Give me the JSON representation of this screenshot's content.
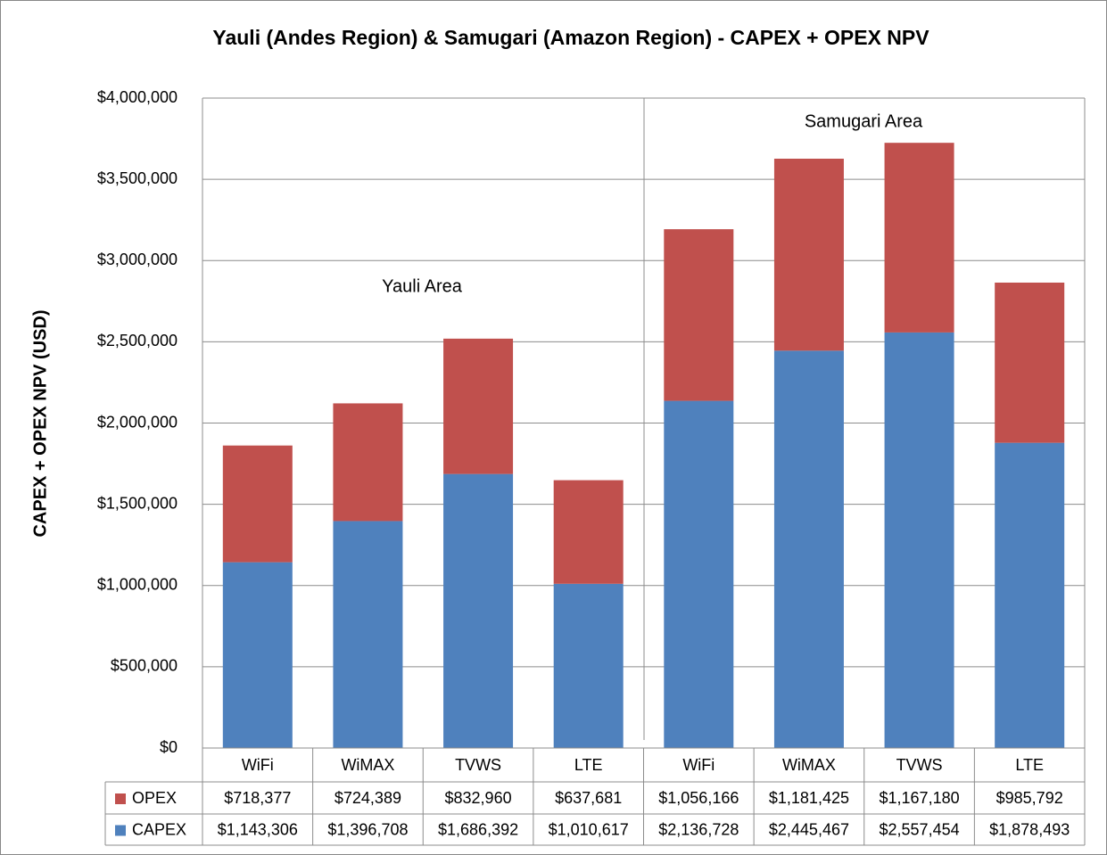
{
  "chart_data": {
    "type": "bar",
    "stacked": true,
    "title": "Yauli (Andes Region) & Samugari (Amazon Region) - CAPEX + OPEX NPV",
    "y_label": "CAPEX + OPEX NPV (USD)",
    "annotations": [
      "Yauli Area",
      "Samugari Area"
    ],
    "categories": [
      "WiFi",
      "WiMAX",
      "TVWS",
      "LTE",
      "WiFi",
      "WiMAX",
      "TVWS",
      "LTE"
    ],
    "series": [
      {
        "name": "OPEX",
        "color": "#c0504d",
        "values": [
          718377,
          724389,
          832960,
          637681,
          1056166,
          1181425,
          1167180,
          985792
        ],
        "value_labels": [
          "$718,377",
          "$724,389",
          "$832,960",
          "$637,681",
          "$1,056,166",
          "$1,181,425",
          "$1,167,180",
          "$985,792"
        ]
      },
      {
        "name": "CAPEX",
        "color": "#4f81bd",
        "values": [
          1143306,
          1396708,
          1686392,
          1010617,
          2136728,
          2445467,
          2557454,
          1878493
        ],
        "value_labels": [
          "$1,143,306",
          "$1,396,708",
          "$1,686,392",
          "$1,010,617",
          "$2,136,728",
          "$2,445,467",
          "$2,557,454",
          "$1,878,493"
        ]
      }
    ],
    "ylim": [
      0,
      4000000
    ],
    "yticks": [
      {
        "value": 0,
        "label": "$0"
      },
      {
        "value": 500000,
        "label": "$500,000"
      },
      {
        "value": 1000000,
        "label": "$1,000,000"
      },
      {
        "value": 1500000,
        "label": "$1,500,000"
      },
      {
        "value": 2000000,
        "label": "$2,000,000"
      },
      {
        "value": 2500000,
        "label": "$2,500,000"
      },
      {
        "value": 3000000,
        "label": "$3,000,000"
      },
      {
        "value": 3500000,
        "label": "$3,500,000"
      },
      {
        "value": 4000000,
        "label": "$4,000,000"
      }
    ],
    "grid": true
  }
}
